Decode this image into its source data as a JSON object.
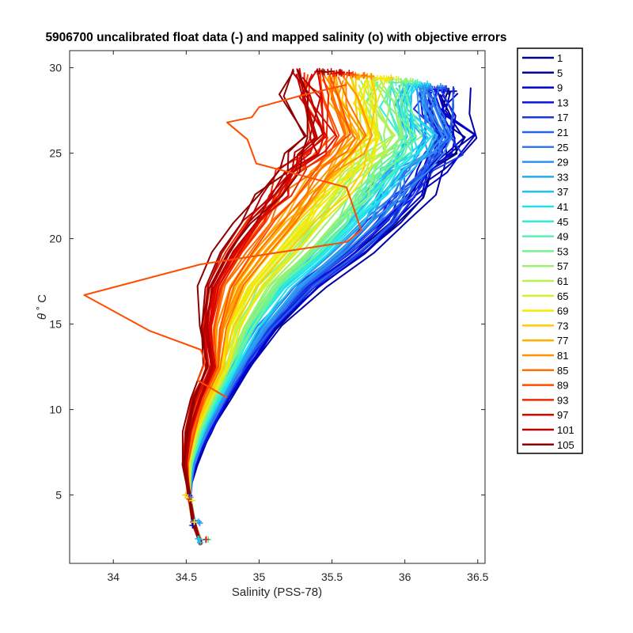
{
  "chart_data": {
    "type": "line",
    "title": "5906700 uncalibrated float data (-) and mapped salinity (o) with objective errors",
    "xlabel": "Salinity (PSS-78)",
    "ylabel": "θ ˚C",
    "ylabel_theta": "θ",
    "ylabel_unit": "˚ C",
    "xlim": [
      33.7,
      36.55
    ],
    "ylim": [
      1.0,
      31.0
    ],
    "xticks": [
      "34",
      "34.5",
      "35",
      "35.5",
      "36",
      "36.5"
    ],
    "xtick_values": [
      34,
      34.5,
      35,
      35.5,
      36,
      36.5
    ],
    "yticks": [
      "5",
      "10",
      "15",
      "20",
      "25",
      "30"
    ],
    "ytick_values": [
      5,
      10,
      15,
      20,
      25,
      30
    ],
    "grid": false,
    "legend_position": "outside-right",
    "legend": [
      "1",
      "5",
      "9",
      "13",
      "17",
      "21",
      "25",
      "29",
      "33",
      "37",
      "41",
      "45",
      "49",
      "53",
      "57",
      "61",
      "65",
      "69",
      "73",
      "77",
      "81",
      "85",
      "89",
      "93",
      "97",
      "101",
      "105"
    ],
    "legend_colors": [
      "#000080",
      "#0000A6",
      "#0000CC",
      "#0A10E0",
      "#1838E6",
      "#2660EB",
      "#2F78F0",
      "#2E90F0",
      "#27A8F0",
      "#20C4F0",
      "#20E0EE",
      "#30EED8",
      "#58F0B0",
      "#78F290",
      "#98F270",
      "#B8F250",
      "#D8F030",
      "#F8E800",
      "#FFCC00",
      "#FFB000",
      "#FF9200",
      "#FF7000",
      "#FF4C00",
      "#F02800",
      "#D80800",
      "#B80000",
      "#900000"
    ],
    "series_template": [
      [
        36.3,
        28.6
      ],
      [
        36.32,
        27.2
      ],
      [
        36.4,
        26.0
      ],
      [
        36.34,
        25.0
      ],
      [
        36.22,
        24.0
      ],
      [
        36.1,
        22.5
      ],
      [
        35.95,
        21.0
      ],
      [
        35.72,
        19.2
      ],
      [
        35.4,
        17.2
      ],
      [
        35.12,
        14.8
      ],
      [
        34.92,
        12.5
      ],
      [
        34.78,
        10.6
      ],
      [
        34.66,
        8.7
      ],
      [
        34.56,
        6.8
      ],
      [
        34.52,
        5.0
      ],
      [
        34.55,
        3.4
      ],
      [
        34.6,
        2.2
      ]
    ],
    "anomaly_series_89": [
      [
        35.6,
        29.0
      ],
      [
        35.3,
        28.4
      ],
      [
        35.0,
        27.7
      ],
      [
        34.95,
        27.1
      ],
      [
        34.78,
        26.8
      ],
      [
        34.92,
        25.8
      ],
      [
        34.98,
        24.4
      ],
      [
        35.6,
        23.0
      ],
      [
        35.7,
        20.5
      ],
      [
        35.6,
        19.8
      ],
      [
        34.6,
        18.5
      ],
      [
        33.8,
        16.7
      ],
      [
        34.25,
        14.6
      ],
      [
        34.6,
        13.5
      ],
      [
        34.63,
        12.8
      ],
      [
        34.58,
        11.7
      ],
      [
        34.78,
        10.7
      ]
    ]
  }
}
